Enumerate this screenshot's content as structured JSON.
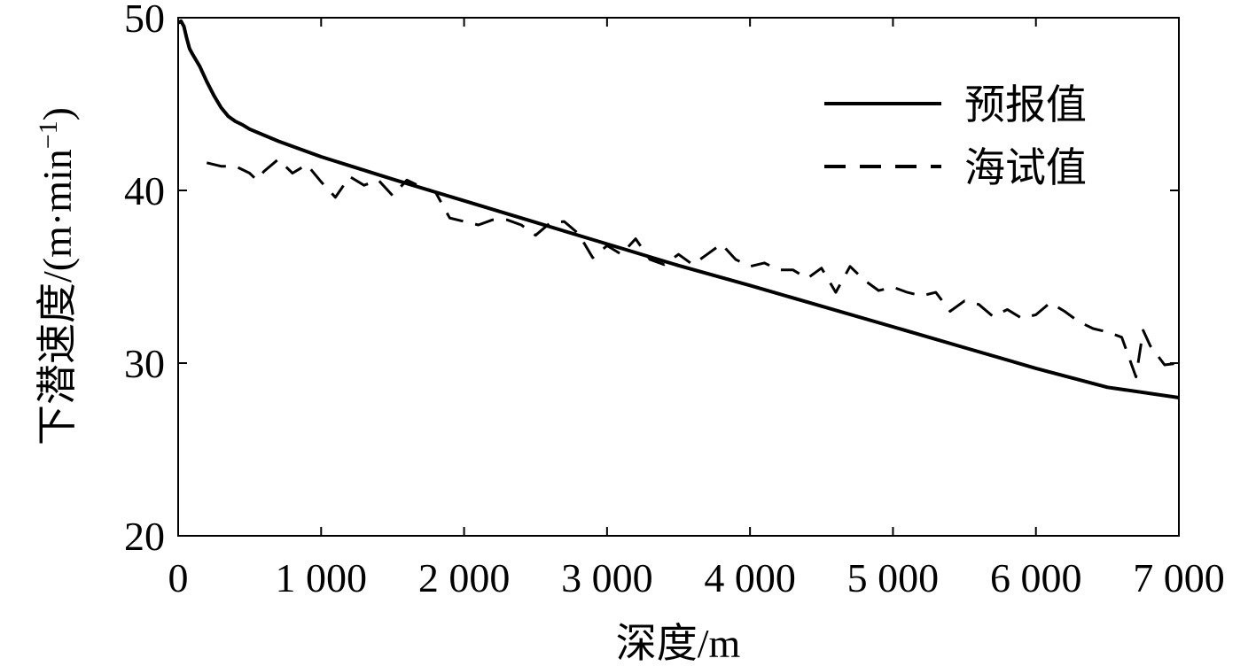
{
  "chart_data": {
    "type": "line",
    "title": "",
    "xlabel": "深度/m",
    "ylabel": "下潜速度/(m·min",
    "ylabel_superscript": "−1",
    "ylabel_close": ")",
    "xlim": [
      0,
      7000
    ],
    "ylim": [
      20,
      50
    ],
    "xticks": [
      0,
      1000,
      2000,
      3000,
      4000,
      5000,
      6000,
      7000
    ],
    "xtick_labels": [
      "0",
      "1 000",
      "2 000",
      "3 000",
      "4 000",
      "5 000",
      "6 000",
      "7 000"
    ],
    "yticks": [
      20,
      30,
      40,
      50
    ],
    "ytick_labels": [
      "20",
      "30",
      "40",
      "50"
    ],
    "grid": false,
    "legend_position": "top-right",
    "series": [
      {
        "name": "预报值",
        "style": "solid",
        "color": "#000000",
        "x": [
          0,
          20,
          40,
          60,
          80,
          100,
          150,
          200,
          250,
          300,
          350,
          400,
          450,
          500,
          600,
          700,
          800,
          1000,
          1500,
          2000,
          2500,
          3000,
          3500,
          4000,
          4500,
          5000,
          5500,
          6000,
          6500,
          7000
        ],
        "y": [
          49.7,
          49.8,
          49.5,
          48.8,
          48.2,
          47.9,
          47.2,
          46.3,
          45.5,
          44.8,
          44.3,
          44.0,
          43.8,
          43.55,
          43.2,
          42.85,
          42.55,
          41.95,
          40.65,
          39.4,
          38.15,
          36.9,
          35.65,
          34.5,
          33.3,
          32.1,
          30.9,
          29.7,
          28.6,
          28.0
        ]
      },
      {
        "name": "海试值",
        "style": "dashed",
        "color": "#000000",
        "x": [
          200,
          300,
          400,
          500,
          550,
          600,
          700,
          800,
          900,
          1000,
          1100,
          1200,
          1300,
          1400,
          1500,
          1600,
          1700,
          1800,
          1900,
          2000,
          2100,
          2200,
          2300,
          2400,
          2500,
          2600,
          2700,
          2800,
          2900,
          3000,
          3100,
          3200,
          3300,
          3400,
          3500,
          3600,
          3700,
          3800,
          3900,
          4000,
          4100,
          4200,
          4300,
          4400,
          4500,
          4600,
          4700,
          4800,
          4900,
          5000,
          5100,
          5200,
          5300,
          5400,
          5500,
          5600,
          5700,
          5800,
          5900,
          6000,
          6100,
          6200,
          6300,
          6400,
          6500,
          6600,
          6700,
          6750,
          6800,
          6900,
          7000
        ],
        "y": [
          41.6,
          41.4,
          41.4,
          41.0,
          40.6,
          41.1,
          41.8,
          41.0,
          41.5,
          40.5,
          39.6,
          40.8,
          40.3,
          40.6,
          39.7,
          40.6,
          40.2,
          39.9,
          38.4,
          38.2,
          38.0,
          38.3,
          38.3,
          38.0,
          37.4,
          38.1,
          38.2,
          37.5,
          36.1,
          36.8,
          36.3,
          37.2,
          36.0,
          35.7,
          36.3,
          35.7,
          36.3,
          36.9,
          36.0,
          35.6,
          35.8,
          35.4,
          35.4,
          34.9,
          35.5,
          34.1,
          35.6,
          34.8,
          34.2,
          34.4,
          34.1,
          33.9,
          34.1,
          33.0,
          33.6,
          33.4,
          32.7,
          33.1,
          32.6,
          32.8,
          33.5,
          33.0,
          32.4,
          32.0,
          31.8,
          31.5,
          29.2,
          31.9,
          31.0,
          29.9,
          30.0
        ]
      }
    ]
  }
}
